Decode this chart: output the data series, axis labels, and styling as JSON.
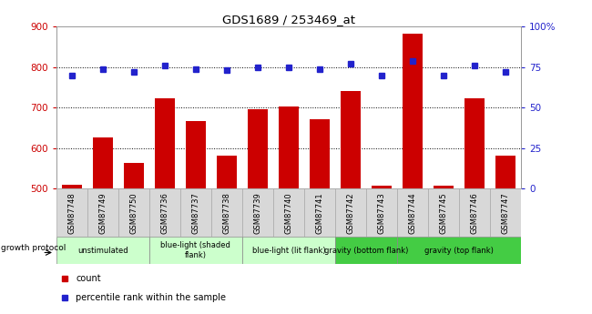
{
  "title": "GDS1689 / 253469_at",
  "samples": [
    "GSM87748",
    "GSM87749",
    "GSM87750",
    "GSM87736",
    "GSM87737",
    "GSM87738",
    "GSM87739",
    "GSM87740",
    "GSM87741",
    "GSM87742",
    "GSM87743",
    "GSM87744",
    "GSM87745",
    "GSM87746",
    "GSM87747"
  ],
  "counts": [
    510,
    625,
    562,
    722,
    666,
    580,
    695,
    702,
    672,
    742,
    507,
    882,
    507,
    722,
    580
  ],
  "percentiles": [
    70,
    74,
    72,
    76,
    74,
    73,
    75,
    75,
    74,
    77,
    70,
    79,
    70,
    76,
    72
  ],
  "bar_color": "#cc0000",
  "dot_color": "#2222cc",
  "ylim_left": [
    500,
    900
  ],
  "ylim_right": [
    0,
    100
  ],
  "yticks_left": [
    500,
    600,
    700,
    800,
    900
  ],
  "yticks_right": [
    0,
    25,
    50,
    75,
    100
  ],
  "yticklabels_right": [
    "0",
    "25",
    "50",
    "75",
    "100%"
  ],
  "groups": [
    {
      "label": "unstimulated",
      "start": 0,
      "end": 3,
      "color": "#ccffcc"
    },
    {
      "label": "blue-light (shaded\nflank)",
      "start": 3,
      "end": 6,
      "color": "#ccffcc"
    },
    {
      "label": "blue-light (lit flank)",
      "start": 6,
      "end": 9,
      "color": "#ccffcc"
    },
    {
      "label": "gravity (bottom flank)",
      "start": 9,
      "end": 11,
      "color": "#44cc44"
    },
    {
      "label": "gravity (top flank)",
      "start": 11,
      "end": 15,
      "color": "#44cc44"
    }
  ],
  "group_label": "growth protocol",
  "legend_items": [
    {
      "label": "count",
      "color": "#cc0000"
    },
    {
      "label": "percentile rank within the sample",
      "color": "#2222cc"
    }
  ],
  "chart_bg": "#ffffff",
  "label_bg": "#d8d8d8",
  "tick_color_left": "#cc0000",
  "tick_color_right": "#2222cc",
  "grid_color": "#000000"
}
